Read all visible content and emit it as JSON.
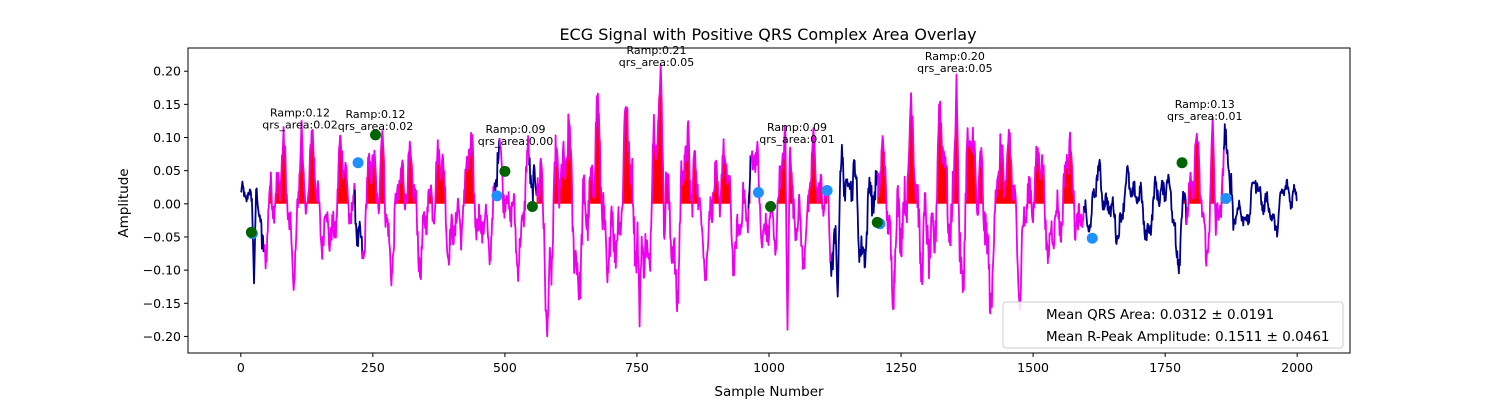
{
  "chart_data": {
    "type": "line",
    "title": "ECG Signal with Positive QRS Complex Area Overlay",
    "xlabel": "Sample Number",
    "ylabel": "Amplitude",
    "xlim": [
      -100,
      2100
    ],
    "ylim": [
      -0.225,
      0.235
    ],
    "x_ticks": [
      0,
      250,
      500,
      750,
      1000,
      1250,
      1500,
      1750,
      2000
    ],
    "y_ticks": [
      -0.2,
      -0.15,
      -0.1,
      -0.05,
      0.0,
      0.05,
      0.1,
      0.15,
      0.2
    ],
    "x_tick_labels": [
      "0",
      "250",
      "500",
      "750",
      "1000",
      "1250",
      "1500",
      "1750",
      "2000"
    ],
    "y_tick_labels": [
      "−0.20",
      "−0.15",
      "−0.10",
      "−0.05",
      "0.00",
      "0.05",
      "0.10",
      "0.15",
      "0.20"
    ],
    "grid": false,
    "colors": {
      "baseline": "#00008b",
      "qrs_segment": "#ee00ee",
      "qrs_fill": "#ff0000",
      "q_marker": "#1e90ff",
      "s_marker": "#006400"
    },
    "qrs_segments": [
      {
        "start": 45,
        "end": 215,
        "fill_from": 45,
        "fill_to": 255
      },
      {
        "start": 230,
        "end": 480,
        "fill_from": 255,
        "fill_to": 470
      },
      {
        "start": 490,
        "end": 545,
        "fill_from": 495,
        "fill_to": 540
      },
      {
        "start": 560,
        "end": 960,
        "fill_from": 560,
        "fill_to": 965
      },
      {
        "start": 965,
        "end": 1115,
        "fill_from": 1000,
        "fill_to": 1110
      },
      {
        "start": 1205,
        "end": 1595,
        "fill_from": 1205,
        "fill_to": 1595
      },
      {
        "start": 1790,
        "end": 1860,
        "fill_from": 1780,
        "fill_to": 1860
      }
    ],
    "peaks": [
      {
        "x": 115,
        "y": 0.125
      },
      {
        "x": 268,
        "y": 0.11
      },
      {
        "x": 795,
        "y": 0.21
      },
      {
        "x": 1040,
        "y": 0.085
      },
      {
        "x": 1355,
        "y": 0.195
      },
      {
        "x": 1840,
        "y": 0.13
      }
    ],
    "q_points": [
      {
        "x": 22,
        "y": -0.045
      },
      {
        "x": 222,
        "y": 0.062
      },
      {
        "x": 485,
        "y": 0.012
      },
      {
        "x": 980,
        "y": 0.017
      },
      {
        "x": 1110,
        "y": 0.02
      },
      {
        "x": 1210,
        "y": -0.03
      },
      {
        "x": 1612,
        "y": -0.052
      },
      {
        "x": 1865,
        "y": 0.008
      }
    ],
    "s_points": [
      {
        "x": 20,
        "y": -0.043
      },
      {
        "x": 255,
        "y": 0.104
      },
      {
        "x": 500,
        "y": 0.049
      },
      {
        "x": 552,
        "y": -0.004
      },
      {
        "x": 1003,
        "y": -0.004
      },
      {
        "x": 1205,
        "y": -0.028
      },
      {
        "x": 1782,
        "y": 0.062
      }
    ],
    "annotations": [
      {
        "x": 112,
        "lines": [
          "Ramp:0.12",
          "qrs_area:0.02"
        ],
        "y": 0.112
      },
      {
        "x": 255,
        "lines": [
          "Ramp:0.12",
          "qrs_area:0.02"
        ],
        "y": 0.11
      },
      {
        "x": 520,
        "lines": [
          "Ramp:0.09",
          "qrs_area:0.00"
        ],
        "y": 0.087
      },
      {
        "x": 787,
        "lines": [
          "Ramp:0.21",
          "qrs_area:0.05"
        ],
        "y": 0.206
      },
      {
        "x": 1053,
        "lines": [
          "Ramp:0.09",
          "qrs_area:0.01"
        ],
        "y": 0.09
      },
      {
        "x": 1352,
        "lines": [
          "Ramp:0.20",
          "qrs_area:0.05"
        ],
        "y": 0.197
      },
      {
        "x": 1825,
        "lines": [
          "Ramp:0.13",
          "qrs_area:0.01"
        ],
        "y": 0.125
      }
    ],
    "legend": {
      "placement": "lower right",
      "entries": [
        "Mean QRS Area: 0.0312 ± 0.0191",
        "Mean R-Peak Amplitude: 0.1511 ± 0.0461"
      ]
    }
  }
}
